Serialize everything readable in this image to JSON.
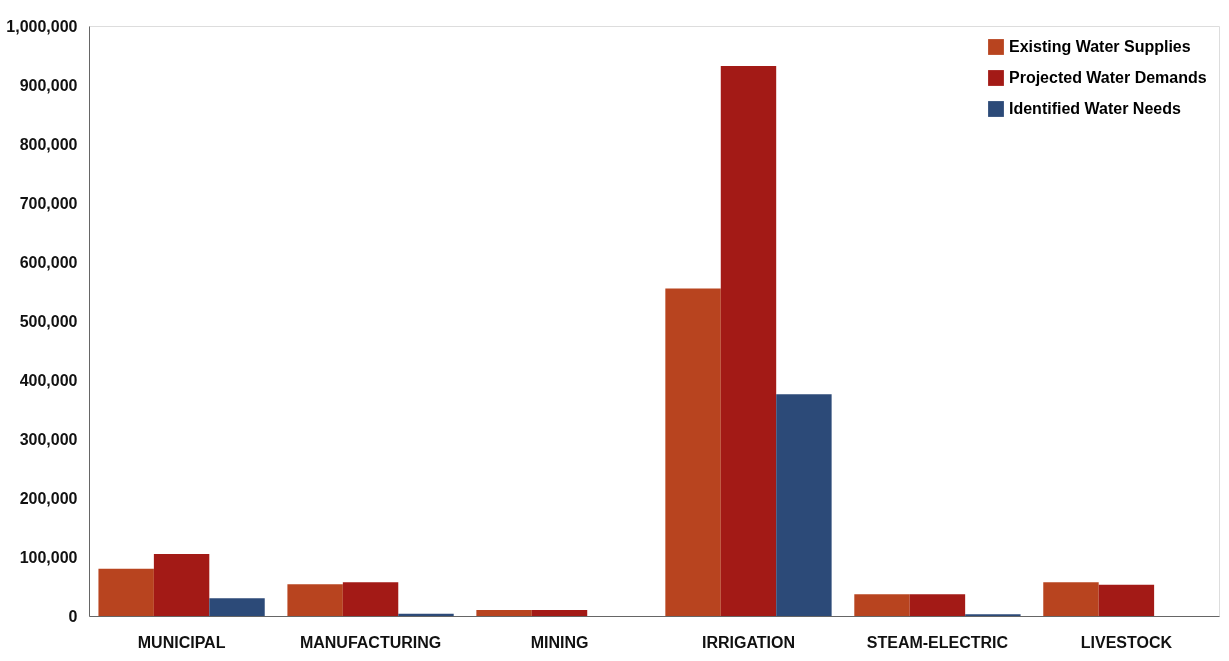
{
  "chart_data": {
    "type": "bar",
    "categories": [
      "MUNICIPAL",
      "MANUFACTURING",
      "MINING",
      "IRRIGATION",
      "STEAM-ELECTRIC",
      "LIVESTOCK"
    ],
    "series": [
      {
        "name": "Existing Water Supplies",
        "color": "#b8441f",
        "values": [
          80000,
          54000,
          10000,
          555000,
          37000,
          57000
        ]
      },
      {
        "name": "Projected Water Demands",
        "color": "#a31a16",
        "values": [
          105000,
          57000,
          10000,
          932000,
          37000,
          53000
        ]
      },
      {
        "name": "Identified Water Needs",
        "color": "#2c4a78",
        "values": [
          30000,
          4000,
          null,
          376000,
          3000,
          null
        ]
      }
    ],
    "ylim": [
      0,
      1000000
    ],
    "yticks": [
      0,
      {
        "value": 100000,
        "label": "100,000"
      },
      {
        "value": 200000,
        "label": "200,000"
      },
      {
        "value": 300000,
        "label": "300,000"
      },
      {
        "value": 400000,
        "label": "400,000"
      },
      {
        "value": 500000,
        "label": "500,000"
      },
      {
        "value": 600000,
        "label": "600,000"
      },
      {
        "value": 700000,
        "label": "700,000"
      },
      {
        "value": 800000,
        "label": "800,000"
      },
      {
        "value": 900000,
        "label": "900,000"
      },
      {
        "value": 1000000,
        "label": "1,000,000"
      }
    ],
    "grid": false,
    "legend": "top right"
  }
}
